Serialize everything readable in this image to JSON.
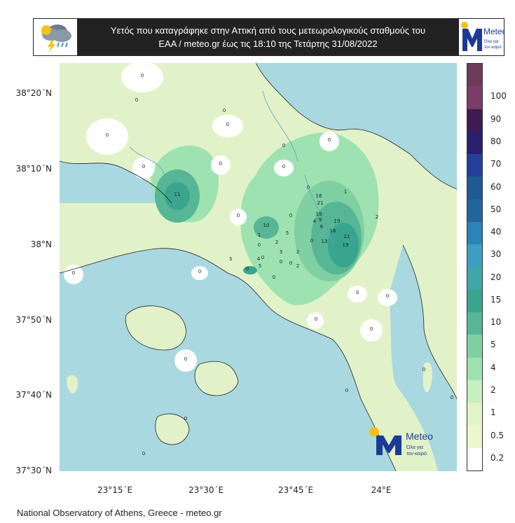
{
  "header": {
    "title_line1": "Υετός που καταγράφηκε στην Αττική από τους μετεωρολογικούς σταθμούς του",
    "title_line2": "ΕΑΑ / meteo.gr  έως τις 18:10 της Τετάρτης 31/08/2022",
    "icon": "storm-cloud-icon",
    "logo_text": "Meteo",
    "logo_tagline": "Όλα για τον καιρό"
  },
  "axes": {
    "lat_labels": [
      "38°20΄N",
      "38°10΄N",
      "38°N",
      "37°50΄N",
      "37°40΄N",
      "37°30΄N"
    ],
    "lon_labels": [
      "23°15΄E",
      "23°30΄E",
      "23°45΄E",
      "24°E"
    ]
  },
  "colorbar": {
    "labels": [
      "100",
      "90",
      "80",
      "70",
      "60",
      "50",
      "40",
      "30",
      "20",
      "15",
      "10",
      "5",
      "4",
      "2",
      "1",
      "0.5",
      "0.2"
    ],
    "colors": [
      "#7a3c68",
      "#3e1b50",
      "#2a1e6e",
      "#24419a",
      "#1f5a94",
      "#22669e",
      "#2a84b8",
      "#3d9ebf",
      "#3fa6aa",
      "#3aa58f",
      "#56b695",
      "#7fd0a3",
      "#9ee2b2",
      "#c6efc2",
      "#e0f4c6",
      "#edf6cc",
      "#ffffff"
    ]
  },
  "watermark": {
    "logo_text": "Meteo",
    "tagline": "Όλα για τον καιρό"
  },
  "stations": [
    "0",
    "0",
    "0",
    "0",
    "0",
    "0",
    "0",
    "0",
    "0",
    "0",
    "11",
    "0",
    "0",
    "0",
    "0",
    "16",
    "21",
    "1",
    "19",
    "4",
    "9",
    "19",
    "6",
    "16",
    "10",
    "5",
    "0",
    "1",
    "0",
    "0",
    "2",
    "13",
    "11",
    "19",
    "2",
    "0",
    "3",
    "2",
    "4",
    "3",
    "0",
    "0",
    "5",
    "0",
    "0",
    "2",
    "0",
    "0",
    "0",
    "0",
    "0",
    "0",
    "0",
    "0",
    "0",
    "0"
  ],
  "footer": "National Observatory of Athens, Greece - meteo.gr"
}
